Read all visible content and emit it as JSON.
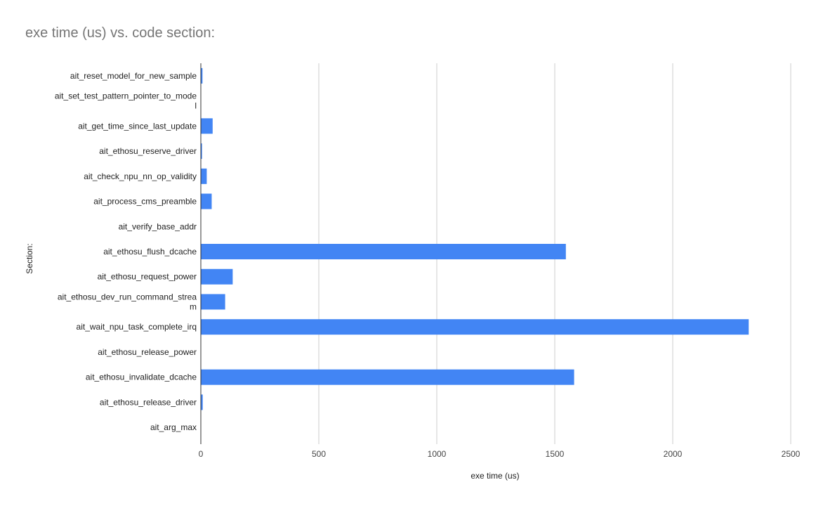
{
  "chart_data": {
    "type": "bar",
    "orientation": "horizontal",
    "title": "exe time (us) vs. code section:",
    "xlabel": "exe time (us)",
    "ylabel": "Section:",
    "xlim": [
      0,
      2500
    ],
    "xticks": [
      0,
      500,
      1000,
      1500,
      2000,
      2500
    ],
    "grid": true,
    "legend": "none",
    "categories": [
      "ait_reset_model_for_new_sample",
      "ait_set_test_pattern_pointer_to_model",
      "ait_get_time_since_last_update",
      "ait_ethosu_reserve_driver",
      "ait_check_npu_nn_op_validity",
      "ait_process_cms_preamble",
      "ait_verify_base_addr",
      "ait_ethosu_flush_dcache",
      "ait_ethosu_request_power",
      "ait_ethosu_dev_run_command_stream",
      "ait_wait_npu_task_complete_irq",
      "ait_ethosu_release_power",
      "ait_ethosu_invalidate_dcache",
      "ait_ethosu_release_driver",
      "ait_arg_max"
    ],
    "category_lines": [
      [
        "ait_reset_model_for_new_sample"
      ],
      [
        "ait_set_test_pattern_pointer_to_mode",
        "l"
      ],
      [
        "ait_get_time_since_last_update"
      ],
      [
        "ait_ethosu_reserve_driver"
      ],
      [
        "ait_check_npu_nn_op_validity"
      ],
      [
        "ait_process_cms_preamble"
      ],
      [
        "ait_verify_base_addr"
      ],
      [
        "ait_ethosu_flush_dcache"
      ],
      [
        "ait_ethosu_request_power"
      ],
      [
        "ait_ethosu_dev_run_command_strea",
        "m"
      ],
      [
        "ait_wait_npu_task_complete_irq"
      ],
      [
        "ait_ethosu_release_power"
      ],
      [
        "ait_ethosu_invalidate_dcache"
      ],
      [
        "ait_ethosu_release_driver"
      ],
      [
        "ait_arg_max"
      ]
    ],
    "values": [
      7,
      0,
      50,
      5,
      25,
      46,
      0,
      1547,
      135,
      103,
      2322,
      0,
      1582,
      8,
      0
    ],
    "bar_color": "#4285f4",
    "grid_color": "#cccccc",
    "axis_color": "#333333"
  }
}
